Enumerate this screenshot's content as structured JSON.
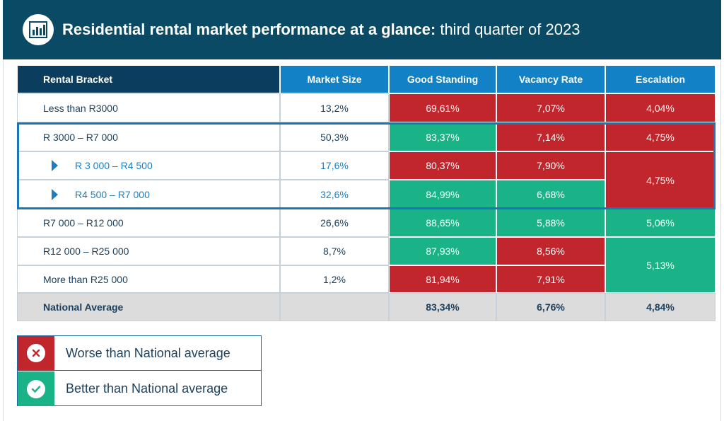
{
  "header": {
    "title_bold": "Residential rental market performance at a glance:",
    "title_light": "third quarter of 2023",
    "icon": "bar-chart-icon"
  },
  "colors": {
    "header_bg": "#0b4a64",
    "worse": "#c0262b",
    "better": "#1ab287",
    "header_dark": "#0b3d5e",
    "header_blue": "#1281c5",
    "national_bg": "#dcdcdc",
    "highlight": "#1a76b8"
  },
  "chart_data": {
    "type": "table",
    "columns": [
      "Rental Bracket",
      "Market Size",
      "Good Standing",
      "Vacancy Rate",
      "Escalation"
    ],
    "rows": [
      {
        "bracket": "Less than R3000",
        "sub": false,
        "market_size": "13,2%",
        "good_standing": "69,61%",
        "good_standing_status": "worse",
        "vacancy_rate": "7,07%",
        "vacancy_rate_status": "worse",
        "escalation": "4,04%",
        "escalation_status": "worse"
      },
      {
        "bracket": "R 3000 – R7 000",
        "sub": false,
        "market_size": "50,3%",
        "good_standing": "83,37%",
        "good_standing_status": "better",
        "vacancy_rate": "7,14%",
        "vacancy_rate_status": "worse",
        "escalation": "4,75%",
        "escalation_status": "worse"
      },
      {
        "bracket": "R 3 000 – R4 500",
        "sub": true,
        "market_size": "17,6%",
        "good_standing": "80,37%",
        "good_standing_status": "worse",
        "vacancy_rate": "7,90%",
        "vacancy_rate_status": "worse",
        "escalation": "4,75%",
        "escalation_status": "worse"
      },
      {
        "bracket": "R4 500 – R7 000",
        "sub": true,
        "market_size": "32,6%",
        "good_standing": "84,99%",
        "good_standing_status": "better",
        "vacancy_rate": "6,68%",
        "vacancy_rate_status": "better",
        "escalation": "4,75%",
        "escalation_status": "worse"
      },
      {
        "bracket": "R7 000 – R12 000",
        "sub": false,
        "market_size": "26,6%",
        "good_standing": "88,65%",
        "good_standing_status": "better",
        "vacancy_rate": "5,88%",
        "vacancy_rate_status": "better",
        "escalation": "5,06%",
        "escalation_status": "better"
      },
      {
        "bracket": "R12 000 – R25 000",
        "sub": false,
        "market_size": "8,7%",
        "good_standing": "87,93%",
        "good_standing_status": "better",
        "vacancy_rate": "8,56%",
        "vacancy_rate_status": "worse",
        "escalation": "5,13%",
        "escalation_status": "better"
      },
      {
        "bracket": "More than R25 000",
        "sub": false,
        "market_size": "1,2%",
        "good_standing": "81,94%",
        "good_standing_status": "worse",
        "vacancy_rate": "7,91%",
        "vacancy_rate_status": "worse",
        "escalation": "5,13%",
        "escalation_status": "better"
      }
    ],
    "national_average": {
      "label": "National Average",
      "market_size": "",
      "good_standing": "83,34%",
      "vacancy_rate": "6,76%",
      "escalation": "4,84%"
    },
    "legend": [
      {
        "status": "worse",
        "label": "Worse than National average",
        "icon": "cross-icon"
      },
      {
        "status": "better",
        "label": "Better than National average",
        "icon": "check-icon"
      }
    ]
  }
}
